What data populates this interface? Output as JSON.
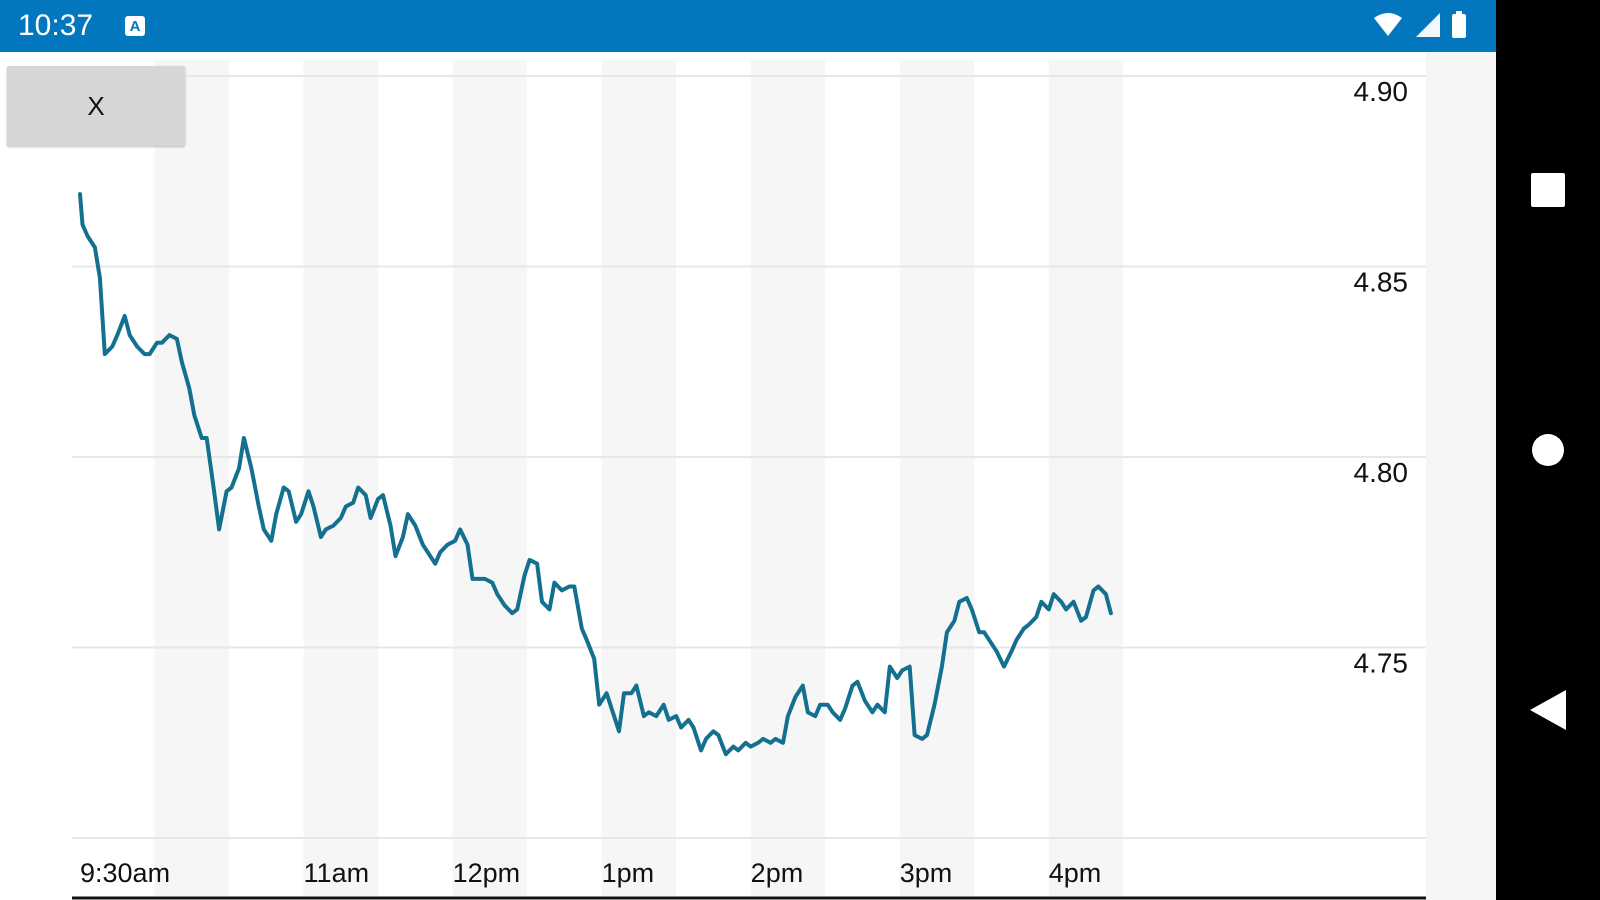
{
  "status_bar": {
    "time": "10:37",
    "notification_icon": "A",
    "icons": [
      "wifi-icon",
      "cell-signal-icon",
      "battery-icon"
    ],
    "background": "#0277bd"
  },
  "close_button": {
    "label": "X"
  },
  "chart_data": {
    "type": "line",
    "title": "",
    "xlabel": "",
    "ylabel": "",
    "x_ticks": [
      "9:30am",
      "11am",
      "12pm",
      "1pm",
      "2pm",
      "3pm",
      "4pm"
    ],
    "x_tick_times": [
      "09:30",
      "11:00",
      "12:00",
      "13:00",
      "14:00",
      "15:00",
      "16:00"
    ],
    "y_ticks": [
      "4.90",
      "4.85",
      "4.80",
      "4.75"
    ],
    "y_tick_values": [
      4.9,
      4.85,
      4.8,
      4.75
    ],
    "xlim": [
      "09:30",
      "16:30"
    ],
    "ylim": [
      4.7,
      4.9
    ],
    "y_axis_position": "right",
    "grid": true,
    "line_color": "#13708f",
    "series": [
      {
        "name": "",
        "points": [
          [
            "09:30",
            4.869
          ],
          [
            "09:31",
            4.861
          ],
          [
            "09:33",
            4.858
          ],
          [
            "09:36",
            4.855
          ],
          [
            "09:38",
            4.847
          ],
          [
            "09:40",
            4.827
          ],
          [
            "09:43",
            4.829
          ],
          [
            "09:45",
            4.832
          ],
          [
            "09:48",
            4.837
          ],
          [
            "09:50",
            4.832
          ],
          [
            "09:53",
            4.829
          ],
          [
            "09:56",
            4.827
          ],
          [
            "09:58",
            4.827
          ],
          [
            "10:01",
            4.83
          ],
          [
            "10:03",
            4.83
          ],
          [
            "10:06",
            4.832
          ],
          [
            "10:09",
            4.831
          ],
          [
            "10:11",
            4.825
          ],
          [
            "10:14",
            4.818
          ],
          [
            "10:16",
            4.811
          ],
          [
            "10:19",
            4.805
          ],
          [
            "10:21",
            4.805
          ],
          [
            "10:24",
            4.791
          ],
          [
            "10:26",
            4.781
          ],
          [
            "10:29",
            4.791
          ],
          [
            "10:31",
            4.792
          ],
          [
            "10:34",
            4.797
          ],
          [
            "10:36",
            4.805
          ],
          [
            "10:39",
            4.797
          ],
          [
            "10:42",
            4.787
          ],
          [
            "10:44",
            4.781
          ],
          [
            "10:47",
            4.778
          ],
          [
            "10:49",
            4.785
          ],
          [
            "10:52",
            4.792
          ],
          [
            "10:54",
            4.791
          ],
          [
            "10:57",
            4.783
          ],
          [
            "10:59",
            4.785
          ],
          [
            "11:02",
            4.791
          ],
          [
            "11:04",
            4.787
          ],
          [
            "11:07",
            4.779
          ],
          [
            "11:09",
            4.781
          ],
          [
            "11:12",
            4.782
          ],
          [
            "11:15",
            4.784
          ],
          [
            "11:17",
            4.787
          ],
          [
            "11:20",
            4.788
          ],
          [
            "11:22",
            4.792
          ],
          [
            "11:25",
            4.79
          ],
          [
            "11:27",
            4.784
          ],
          [
            "11:30",
            4.789
          ],
          [
            "11:32",
            4.79
          ],
          [
            "11:35",
            4.782
          ],
          [
            "11:37",
            4.774
          ],
          [
            "11:40",
            4.779
          ],
          [
            "11:42",
            4.785
          ],
          [
            "11:45",
            4.782
          ],
          [
            "11:48",
            4.777
          ],
          [
            "11:50",
            4.775
          ],
          [
            "11:53",
            4.772
          ],
          [
            "11:55",
            4.775
          ],
          [
            "11:58",
            4.777
          ],
          [
            "12:01",
            4.778
          ],
          [
            "12:03",
            4.781
          ],
          [
            "12:06",
            4.777
          ],
          [
            "12:08",
            4.768
          ],
          [
            "12:11",
            4.768
          ],
          [
            "12:13",
            4.768
          ],
          [
            "12:16",
            4.767
          ],
          [
            "12:18",
            4.764
          ],
          [
            "12:21",
            4.761
          ],
          [
            "12:24",
            4.759
          ],
          [
            "12:26",
            4.76
          ],
          [
            "12:29",
            4.769
          ],
          [
            "12:31",
            4.773
          ],
          [
            "12:34",
            4.772
          ],
          [
            "12:36",
            4.762
          ],
          [
            "12:39",
            4.76
          ],
          [
            "12:41",
            4.767
          ],
          [
            "12:44",
            4.765
          ],
          [
            "12:47",
            4.766
          ],
          [
            "12:49",
            4.766
          ],
          [
            "12:52",
            4.755
          ],
          [
            "12:54",
            4.752
          ],
          [
            "12:57",
            4.747
          ],
          [
            "12:59",
            4.735
          ],
          [
            "13:02",
            4.738
          ],
          [
            "13:04",
            4.734
          ],
          [
            "13:07",
            4.728
          ],
          [
            "13:09",
            4.738
          ],
          [
            "13:12",
            4.738
          ],
          [
            "13:14",
            4.74
          ],
          [
            "13:17",
            4.732
          ],
          [
            "13:19",
            4.733
          ],
          [
            "13:22",
            4.732
          ],
          [
            "13:25",
            4.735
          ],
          [
            "13:27",
            4.731
          ],
          [
            "13:30",
            4.732
          ],
          [
            "13:32",
            4.729
          ],
          [
            "13:35",
            4.731
          ],
          [
            "13:37",
            4.729
          ],
          [
            "13:40",
            4.723
          ],
          [
            "13:42",
            4.726
          ],
          [
            "13:45",
            4.728
          ],
          [
            "13:47",
            4.727
          ],
          [
            "13:50",
            4.722
          ],
          [
            "13:53",
            4.724
          ],
          [
            "13:55",
            4.723
          ],
          [
            "13:58",
            4.725
          ],
          [
            "14:00",
            4.724
          ],
          [
            "14:03",
            4.725
          ],
          [
            "14:05",
            4.726
          ],
          [
            "14:08",
            4.725
          ],
          [
            "14:10",
            4.726
          ],
          [
            "14:13",
            4.725
          ],
          [
            "14:15",
            4.732
          ],
          [
            "14:18",
            4.737
          ],
          [
            "14:21",
            4.74
          ],
          [
            "14:23",
            4.733
          ],
          [
            "14:26",
            4.732
          ],
          [
            "14:28",
            4.735
          ],
          [
            "14:31",
            4.735
          ],
          [
            "14:33",
            4.733
          ],
          [
            "14:36",
            4.731
          ],
          [
            "14:38",
            4.734
          ],
          [
            "14:41",
            4.74
          ],
          [
            "14:43",
            4.741
          ],
          [
            "14:46",
            4.736
          ],
          [
            "14:49",
            4.733
          ],
          [
            "14:51",
            4.735
          ],
          [
            "14:54",
            4.733
          ],
          [
            "14:56",
            4.745
          ],
          [
            "14:59",
            4.742
          ],
          [
            "15:01",
            4.744
          ],
          [
            "15:04",
            4.745
          ],
          [
            "15:06",
            4.727
          ],
          [
            "15:09",
            4.726
          ],
          [
            "15:11",
            4.727
          ],
          [
            "15:14",
            4.735
          ],
          [
            "15:17",
            4.745
          ],
          [
            "15:19",
            4.754
          ],
          [
            "15:22",
            4.757
          ],
          [
            "15:24",
            4.762
          ],
          [
            "15:27",
            4.763
          ],
          [
            "15:29",
            4.76
          ],
          [
            "15:32",
            4.754
          ],
          [
            "15:34",
            4.754
          ],
          [
            "15:37",
            4.751
          ],
          [
            "15:39",
            4.749
          ],
          [
            "15:42",
            4.745
          ],
          [
            "15:45",
            4.749
          ],
          [
            "15:47",
            4.752
          ],
          [
            "15:50",
            4.755
          ],
          [
            "15:52",
            4.756
          ],
          [
            "15:55",
            4.758
          ],
          [
            "15:57",
            4.762
          ],
          [
            "16:00",
            4.76
          ],
          [
            "16:02",
            4.764
          ],
          [
            "16:05",
            4.762
          ],
          [
            "16:07",
            4.76
          ],
          [
            "16:10",
            4.762
          ],
          [
            "16:13",
            4.757
          ],
          [
            "16:15",
            4.758
          ],
          [
            "16:18",
            4.765
          ],
          [
            "16:20",
            4.766
          ],
          [
            "16:23",
            4.764
          ],
          [
            "16:25",
            4.759
          ]
        ]
      }
    ]
  },
  "nav_bar": {
    "buttons": [
      "overview-square-icon",
      "home-circle-icon",
      "back-triangle-icon"
    ]
  }
}
